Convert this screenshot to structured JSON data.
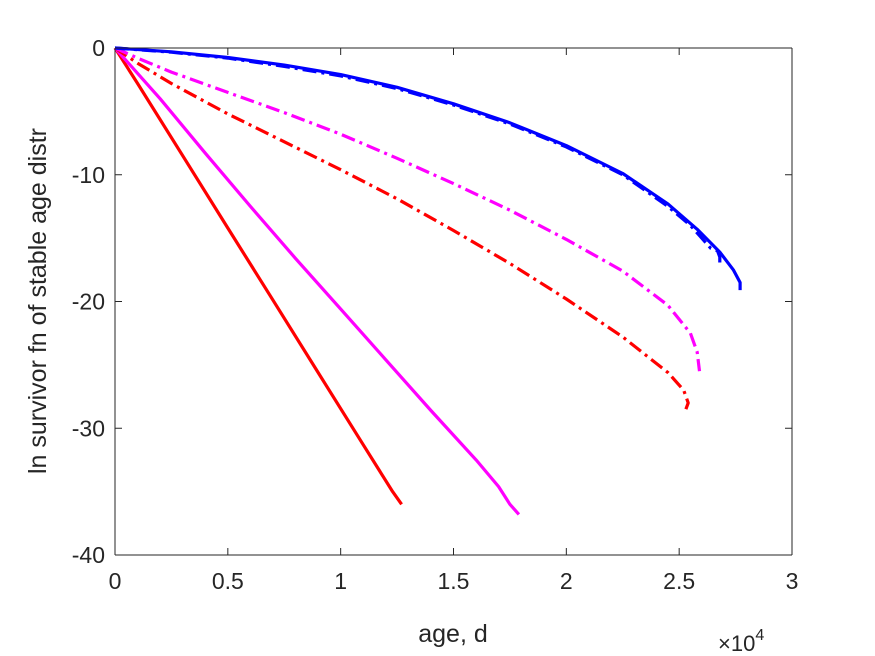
{
  "chart_data": {
    "type": "line",
    "title": "",
    "xlabel": "age, d",
    "ylabel": "ln survivor fn of stable age distr",
    "x_multiplier_label": "×10",
    "x_multiplier_exponent": "4",
    "xlim": [
      0,
      3
    ],
    "ylim": [
      -40,
      0
    ],
    "x_ticks": [
      0,
      0.5,
      1,
      1.5,
      2,
      2.5,
      3
    ],
    "x_tick_labels": [
      "0",
      "0.5",
      "1",
      "1.5",
      "2",
      "2.5",
      "3"
    ],
    "y_ticks": [
      0,
      -10,
      -20,
      -30,
      -40
    ],
    "y_tick_labels": [
      "0",
      "-10",
      "-20",
      "-30",
      "-40"
    ],
    "x_units_note": "x values in units of 10^4 days",
    "grid": false,
    "legend": "none",
    "series": [
      {
        "color": "#ff0000",
        "style": "solid",
        "points": [
          [
            0,
            0
          ],
          [
            0.1,
            -2.8
          ],
          [
            0.3,
            -8.5
          ],
          [
            0.5,
            -14.2
          ],
          [
            0.7,
            -19.9
          ],
          [
            0.9,
            -25.6
          ],
          [
            1.1,
            -31.3
          ],
          [
            1.23,
            -35.0
          ],
          [
            1.27,
            -36.0
          ]
        ]
      },
      {
        "color": "#ff00ff",
        "style": "solid",
        "points": [
          [
            0,
            0
          ],
          [
            0.2,
            -4.0
          ],
          [
            0.4,
            -8.3
          ],
          [
            0.6,
            -12.5
          ],
          [
            0.8,
            -16.6
          ],
          [
            1.0,
            -20.6
          ],
          [
            1.2,
            -24.6
          ],
          [
            1.4,
            -28.6
          ],
          [
            1.6,
            -32.5
          ],
          [
            1.7,
            -34.6
          ],
          [
            1.75,
            -36.0
          ],
          [
            1.79,
            -36.8
          ]
        ]
      },
      {
        "color": "#ff0000",
        "style": "dashdot",
        "points": [
          [
            0,
            0
          ],
          [
            0.1,
            -1.2
          ],
          [
            0.25,
            -2.8
          ],
          [
            0.5,
            -5.2
          ],
          [
            0.75,
            -7.4
          ],
          [
            1.0,
            -9.6
          ],
          [
            1.25,
            -11.9
          ],
          [
            1.5,
            -14.4
          ],
          [
            1.75,
            -17.0
          ],
          [
            2.0,
            -19.8
          ],
          [
            2.25,
            -22.8
          ],
          [
            2.45,
            -25.6
          ],
          [
            2.52,
            -27.0
          ],
          [
            2.54,
            -28.0
          ],
          [
            2.53,
            -28.5
          ]
        ]
      },
      {
        "color": "#ff00ff",
        "style": "dashdot",
        "points": [
          [
            0,
            0
          ],
          [
            0.1,
            -0.8
          ],
          [
            0.25,
            -1.9
          ],
          [
            0.5,
            -3.5
          ],
          [
            0.75,
            -5.1
          ],
          [
            1.0,
            -6.8
          ],
          [
            1.25,
            -8.7
          ],
          [
            1.5,
            -10.7
          ],
          [
            1.75,
            -12.8
          ],
          [
            2.0,
            -15.1
          ],
          [
            2.25,
            -17.6
          ],
          [
            2.45,
            -20.3
          ],
          [
            2.55,
            -22.5
          ],
          [
            2.58,
            -24.0
          ],
          [
            2.59,
            -25.5
          ]
        ]
      },
      {
        "color": "#0000ff",
        "style": "solid",
        "points": [
          [
            0,
            0
          ],
          [
            0.25,
            -0.3
          ],
          [
            0.5,
            -0.75
          ],
          [
            0.75,
            -1.35
          ],
          [
            1.0,
            -2.1
          ],
          [
            1.25,
            -3.1
          ],
          [
            1.5,
            -4.4
          ],
          [
            1.75,
            -5.9
          ],
          [
            2.0,
            -7.7
          ],
          [
            2.25,
            -9.9
          ],
          [
            2.45,
            -12.3
          ],
          [
            2.58,
            -14.3
          ],
          [
            2.68,
            -16.1
          ],
          [
            2.74,
            -17.5
          ],
          [
            2.77,
            -18.5
          ],
          [
            2.77,
            -19.1
          ]
        ]
      },
      {
        "color": "#0000ff",
        "style": "dashdot",
        "points": [
          [
            0,
            0
          ],
          [
            0.25,
            -0.33
          ],
          [
            0.5,
            -0.8
          ],
          [
            0.75,
            -1.45
          ],
          [
            1.0,
            -2.2
          ],
          [
            1.25,
            -3.2
          ],
          [
            1.5,
            -4.5
          ],
          [
            1.75,
            -6.0
          ],
          [
            2.0,
            -7.8
          ],
          [
            2.25,
            -10.0
          ],
          [
            2.45,
            -12.5
          ],
          [
            2.55,
            -14.0
          ],
          [
            2.6,
            -15.0
          ],
          [
            2.64,
            -15.8
          ],
          [
            2.67,
            -16.0
          ],
          [
            2.68,
            -16.5
          ],
          [
            2.68,
            -17.1
          ]
        ]
      }
    ]
  }
}
